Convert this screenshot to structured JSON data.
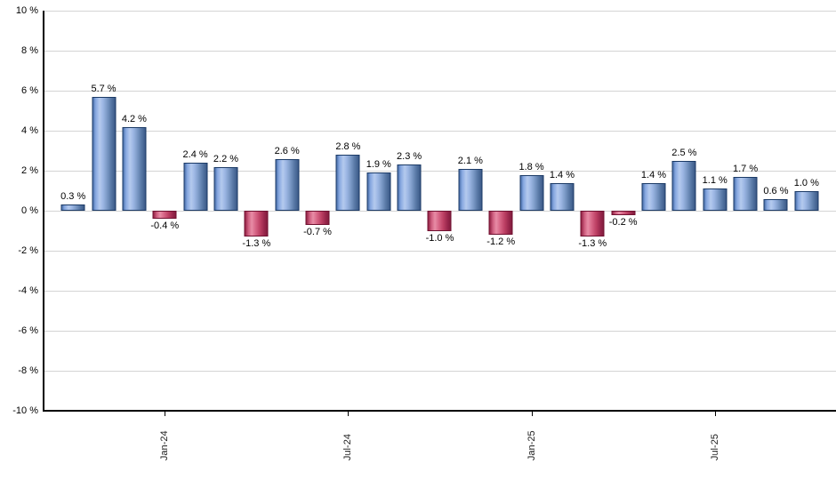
{
  "chart_data": {
    "type": "bar",
    "title": "",
    "xlabel": "",
    "ylabel": "",
    "grid": "horizontal",
    "legend_position": "none",
    "y_axis": {
      "min": -10,
      "max": 10,
      "step": 2,
      "tick_labels": [
        "10 %",
        "8 %",
        "6 %",
        "4 %",
        "2 %",
        "0 %",
        "-2 %",
        "-4 %",
        "-6 %",
        "-8 %",
        "-10 %"
      ]
    },
    "x_axis": {
      "tick_labels": [
        {
          "index": 3,
          "label": "Jan-24"
        },
        {
          "index": 9,
          "label": "Jul-24"
        },
        {
          "index": 15,
          "label": "Jan-25"
        },
        {
          "index": 21,
          "label": "Jul-25"
        }
      ]
    },
    "values": [
      0.3,
      5.7,
      4.2,
      -0.4,
      2.4,
      2.2,
      -1.3,
      2.6,
      -0.7,
      2.8,
      1.9,
      2.3,
      -1.0,
      2.1,
      -1.2,
      1.8,
      1.4,
      -1.3,
      -0.2,
      1.4,
      2.5,
      1.1,
      1.7,
      0.6,
      1.0
    ],
    "bar_labels": [
      "0.3 %",
      "5.7 %",
      "4.2 %",
      "-0.4 %",
      "2.4 %",
      "2.2 %",
      "-1.3 %",
      "2.6 %",
      "-0.7 %",
      "2.8 %",
      "1.9 %",
      "2.3 %",
      "-1.0 %",
      "2.1 %",
      "-1.2 %",
      "1.8 %",
      "1.4 %",
      "-1.3 %",
      "-0.2 %",
      "1.4 %",
      "2.5 %",
      "1.1 %",
      "1.7 %",
      "0.6 %",
      "1.0 %"
    ],
    "colors": {
      "positive_bar": "#7da2dc",
      "negative_bar": "#cf5377",
      "gridline": "#d4d4d4",
      "axis": "#000000",
      "value_label_text": "#000000",
      "background": "#ffffff"
    }
  }
}
